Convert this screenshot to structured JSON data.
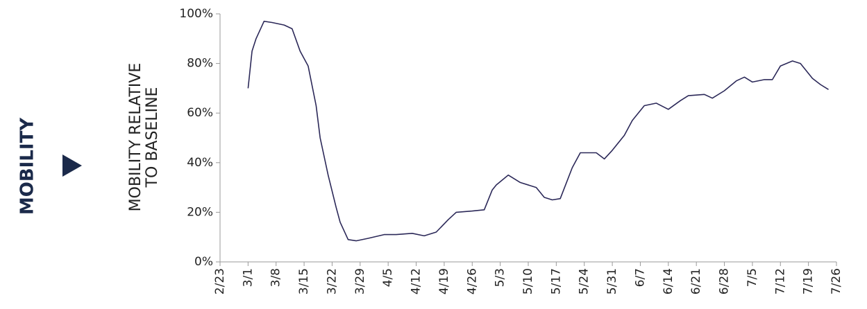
{
  "chart_data": {
    "type": "line",
    "section_label": "MOBILITY",
    "ylabel": [
      "MOBILITY RELATIVE",
      "TO BASELINE"
    ],
    "x": [
      "3/1",
      "3/2",
      "3/3",
      "3/5",
      "3/7",
      "3/10",
      "3/12",
      "3/14",
      "3/16",
      "3/18",
      "3/19",
      "3/21",
      "3/23",
      "3/24",
      "3/26",
      "3/28",
      "3/31",
      "4/4",
      "4/7",
      "4/11",
      "4/14",
      "4/17",
      "4/20",
      "4/22",
      "4/26",
      "4/29",
      "5/1",
      "5/2",
      "5/5",
      "5/8",
      "5/12",
      "5/14",
      "5/16",
      "5/18",
      "5/21",
      "5/23",
      "5/27",
      "5/29",
      "5/31",
      "6/3",
      "6/5",
      "6/8",
      "6/11",
      "6/14",
      "6/17",
      "6/19",
      "6/23",
      "6/25",
      "6/28",
      "7/1",
      "7/3",
      "7/5",
      "7/8",
      "7/10",
      "7/12",
      "7/15",
      "7/17",
      "7/20",
      "7/22",
      "7/24"
    ],
    "series": [
      {
        "color": "#2b2858",
        "values": [
          70,
          85,
          90,
          97,
          96.5,
          95.5,
          94,
          85,
          79,
          63,
          50,
          35,
          22,
          16,
          9,
          8.5,
          9.5,
          11,
          11,
          11.5,
          10.5,
          12,
          17,
          20,
          20.5,
          21,
          29,
          31,
          35,
          32,
          30,
          26,
          25,
          25.5,
          38,
          44,
          44,
          41.5,
          45,
          51,
          57,
          63,
          64,
          61.5,
          65,
          67,
          67.5,
          66,
          69,
          73,
          74.5,
          72.5,
          73.5,
          73.5,
          79,
          81,
          80,
          74,
          71.5,
          69.5
        ]
      }
    ],
    "xlim": [
      "2/23",
      "7/26"
    ],
    "xticks": [
      "2/23",
      "3/1",
      "3/8",
      "3/15",
      "3/22",
      "3/29",
      "4/5",
      "4/12",
      "4/19",
      "4/26",
      "5/3",
      "5/10",
      "5/17",
      "5/24",
      "5/31",
      "6/7",
      "6/14",
      "6/21",
      "6/28",
      "7/5",
      "7/12",
      "7/19",
      "7/26"
    ],
    "ylim": [
      0,
      100
    ],
    "yticks": [
      {
        "value": 0,
        "label": "0%"
      },
      {
        "value": 20,
        "label": "20%"
      },
      {
        "value": 40,
        "label": "40%"
      },
      {
        "value": 60,
        "label": "60%"
      },
      {
        "value": 80,
        "label": "80%"
      },
      {
        "value": 100,
        "label": "100%"
      }
    ]
  }
}
